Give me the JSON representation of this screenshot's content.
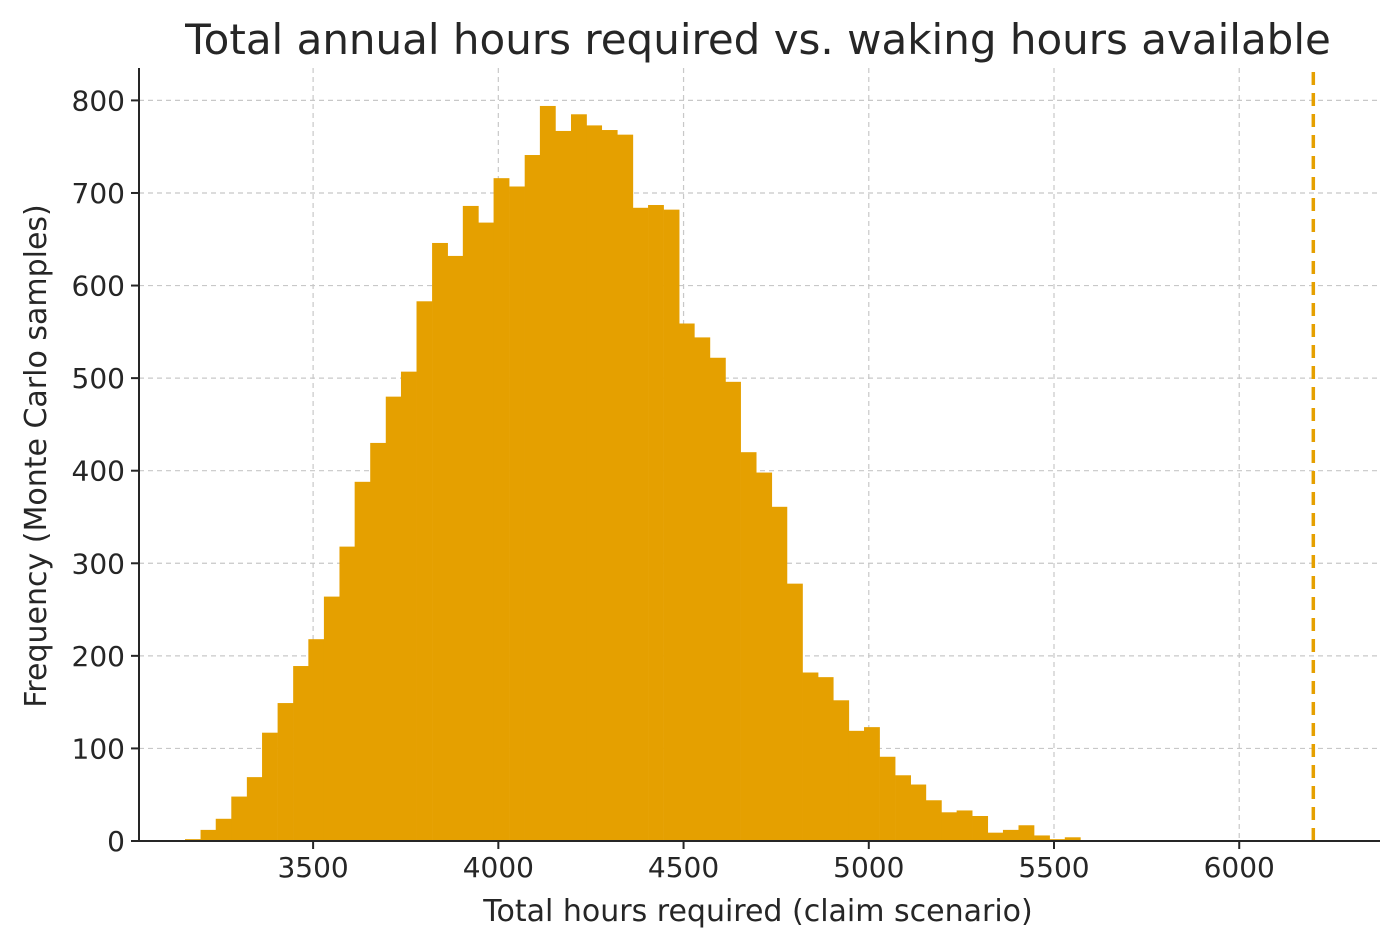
{
  "chart_data": {
    "type": "bar",
    "title": "Total annual hours required vs. waking hours available",
    "xlabel": "Total hours required (claim scenario)",
    "ylabel": "Frequency (Monte Carlo samples)",
    "xlim": [
      3030,
      6380
    ],
    "ylim": [
      0,
      835
    ],
    "xticks": [
      3500,
      4000,
      4500,
      5000,
      5500,
      6000
    ],
    "yticks": [
      0,
      100,
      200,
      300,
      400,
      500,
      600,
      700,
      800
    ],
    "grid": true,
    "bin_width": 41.7,
    "series": [
      {
        "x": [
          3175,
          3217,
          3258,
          3300,
          3342,
          3383,
          3425,
          3467,
          3508,
          3550,
          3592,
          3633,
          3675,
          3717,
          3758,
          3800,
          3842,
          3883,
          3925,
          3967,
          4008,
          4050,
          4092,
          4133,
          4175,
          4217,
          4258,
          4300,
          4342,
          4383,
          4425,
          4467,
          4508,
          4550,
          4592,
          4633,
          4675,
          4717,
          4758,
          4800,
          4842,
          4883,
          4925,
          4967,
          5008,
          5050,
          5092,
          5133,
          5175,
          5217,
          5258,
          5300,
          5342,
          5383,
          5425,
          5467,
          5508,
          5550
        ],
        "values": [
          2,
          12,
          24,
          48,
          69,
          117,
          149,
          189,
          218,
          264,
          318,
          388,
          430,
          480,
          507,
          583,
          646,
          632,
          686,
          668,
          716,
          707,
          741,
          794,
          767,
          785,
          773,
          768,
          763,
          684,
          687,
          682,
          559,
          544,
          522,
          496,
          420,
          398,
          361,
          278,
          182,
          177,
          152,
          119,
          123,
          91,
          71,
          61,
          44,
          31,
          33,
          27,
          9,
          12,
          17,
          6,
          2,
          4
        ]
      }
    ],
    "reference_line": {
      "x": 6200,
      "orientation": "vertical",
      "style": "dashed",
      "color": "#e5a000"
    },
    "bar_color": "#e5a000"
  }
}
